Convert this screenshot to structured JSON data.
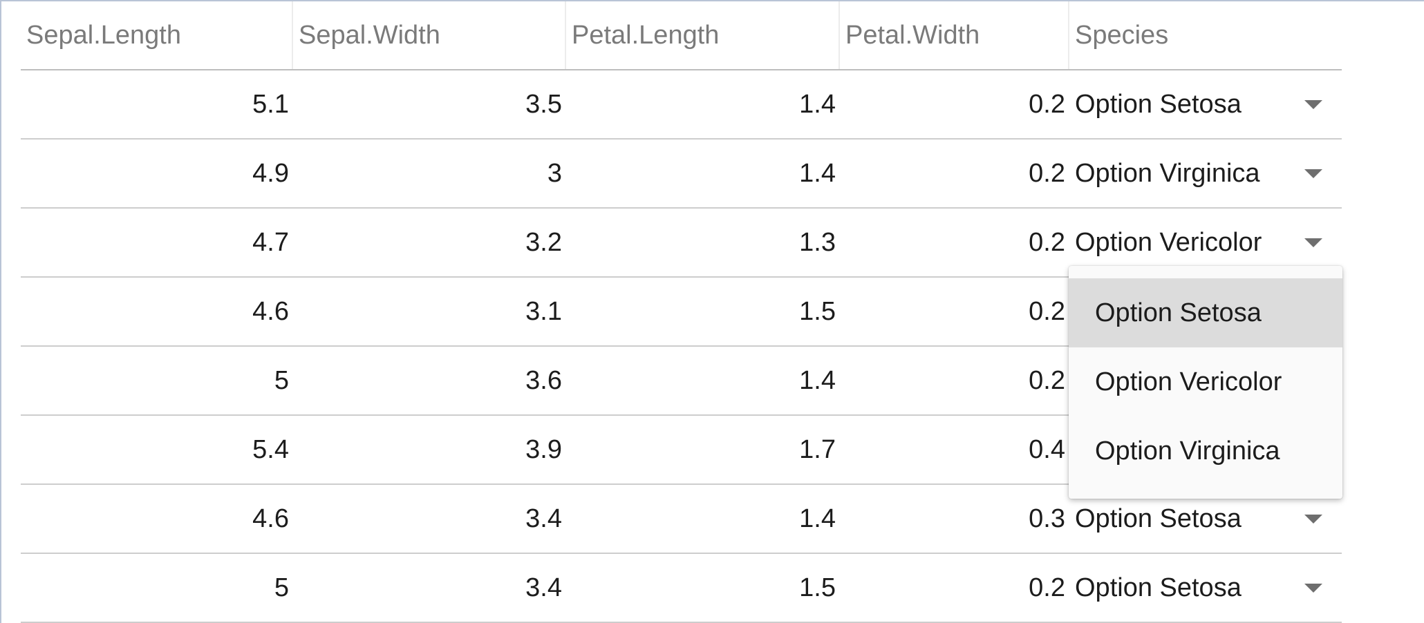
{
  "table": {
    "columns": [
      "Sepal.Length",
      "Sepal.Width",
      "Petal.Length",
      "Petal.Width",
      "Species"
    ],
    "rows": [
      [
        "5.1",
        "3.5",
        "1.4",
        "0.2",
        "Option Setosa"
      ],
      [
        "4.9",
        "3",
        "1.4",
        "0.2",
        "Option Virginica"
      ],
      [
        "4.7",
        "3.2",
        "1.3",
        "0.2",
        "Option Vericolor"
      ],
      [
        "4.6",
        "3.1",
        "1.5",
        "0.2",
        ""
      ],
      [
        "5",
        "3.6",
        "1.4",
        "0.2",
        ""
      ],
      [
        "5.4",
        "3.9",
        "1.7",
        "0.4",
        ""
      ],
      [
        "4.6",
        "3.4",
        "1.4",
        "0.3",
        "Option Setosa"
      ],
      [
        "5",
        "3.4",
        "1.5",
        "0.2",
        "Option Setosa"
      ]
    ]
  },
  "dropdown": {
    "open": true,
    "options": [
      "Option Setosa",
      "Option Vericolor",
      "Option Virginica"
    ],
    "highlighted_index": 0
  },
  "icons": {
    "caret": "caret-down-icon"
  },
  "colors": {
    "header_text": "#7a7a7a",
    "row_border": "#cdcdcd",
    "menu_highlight": "#dcdcdc",
    "frame_border": "#b9c4d6"
  }
}
